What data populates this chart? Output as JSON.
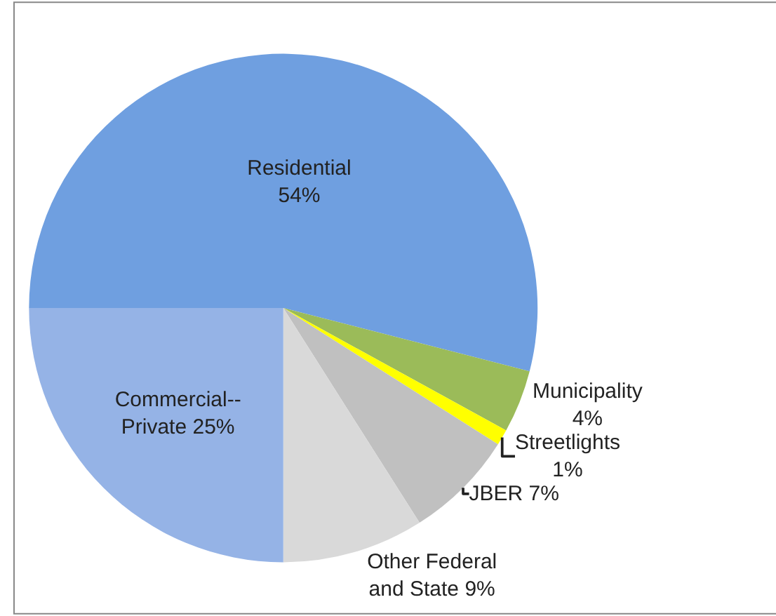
{
  "chart_data": {
    "type": "pie",
    "categories": [
      "Residential",
      "Municipality",
      "Streetlights",
      "JBER",
      "Other Federal and State",
      "Commercial--Private"
    ],
    "values": [
      54,
      4,
      1,
      7,
      9,
      25
    ],
    "colors": [
      "#6f9fe0",
      "#9bbb59",
      "#ffff00",
      "#c0c0c0",
      "#d9d9d9",
      "#95b3e6"
    ],
    "value_labels": [
      "54%",
      "4%",
      "1%",
      "7%",
      "9%",
      "25%"
    ],
    "legend": false
  }
}
